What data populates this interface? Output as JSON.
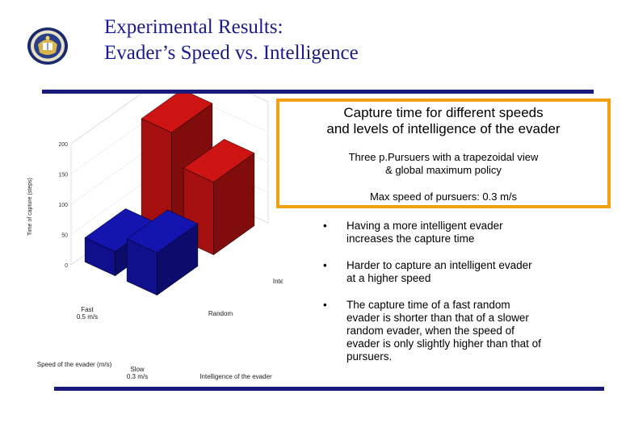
{
  "header": {
    "title_line1": "Experimental Results:",
    "title_line2": "Evader’s Speed vs. Intelligence"
  },
  "callout": {
    "title": "Capture time for different speeds\nand levels of intelligence of the evader",
    "setup": "Three p.Pursuers with a trapezoidal view\n& global maximum policy",
    "max_speed": "Max speed of pursuers: 0.3 m/s"
  },
  "bullets": [
    "Having a more intelligent evader\nincreases the capture time",
    "Harder to capture an intelligent evader\nat a higher speed",
    "The capture time of a fast random\nevader is shorter than that of a slower\nrandom evader, when the speed of\nevader is only slightly higher than that of\npursuers."
  ],
  "bullet_marker": "•",
  "chart_data": {
    "type": "bar",
    "title": "",
    "zlabel": "Time of capture (steps)",
    "xlabel": "Speed of the evader (m/s)",
    "ylabel": "Intelligence of the evader",
    "z_ticks": [
      "0",
      "50",
      "100",
      "150",
      "200"
    ],
    "zlim": [
      0,
      200
    ],
    "speed_categories": [
      "Fast\n0.5 m/s",
      "Slow\n0.3 m/s"
    ],
    "intelligence_categories": [
      "Random",
      "Intelligent"
    ],
    "bars": [
      {
        "speed": "Fast 0.5 m/s",
        "intelligence": "Intelligent",
        "value": 170,
        "color": "#a50f0f"
      },
      {
        "speed": "Slow 0.3 m/s",
        "intelligence": "Intelligent",
        "value": 120,
        "color": "#a50f0f"
      },
      {
        "speed": "Fast 0.5 m/s",
        "intelligence": "Random",
        "value": 40,
        "color": "#10108c"
      },
      {
        "speed": "Slow 0.3 m/s",
        "intelligence": "Random",
        "value": 70,
        "color": "#10108c"
      }
    ],
    "grid": true
  },
  "colors": {
    "title": "#1a1a8c",
    "rule": "#1a1a7a",
    "callout_border": "#f0a012",
    "bar_red": "#a50f0f",
    "bar_blue": "#10108c"
  }
}
